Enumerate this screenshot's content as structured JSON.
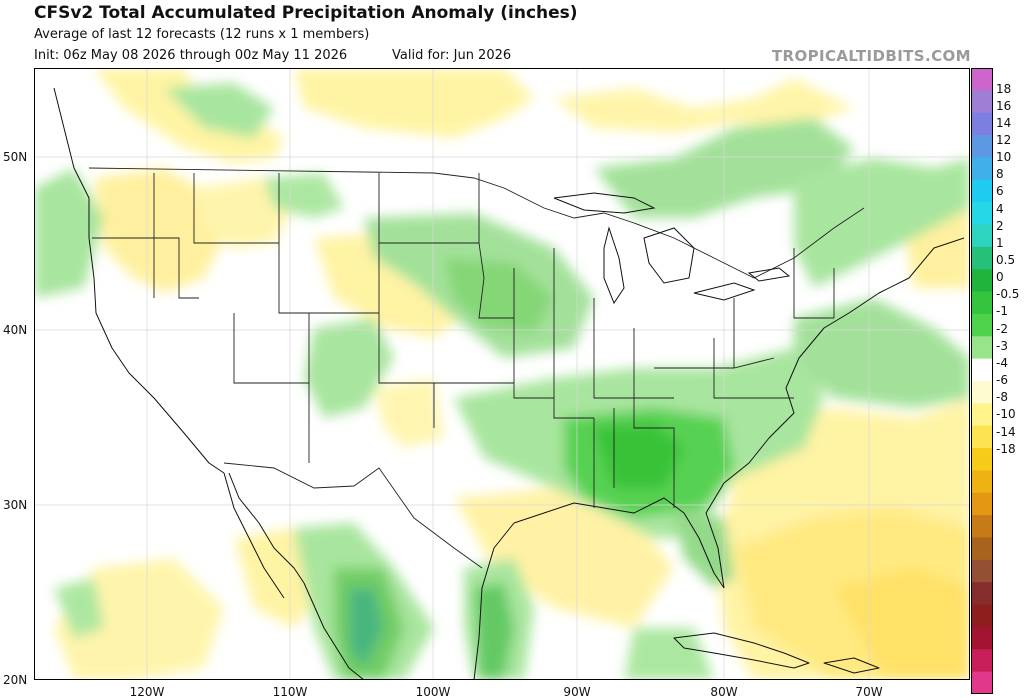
{
  "header": {
    "title": "CFSv2 Total Accumulated Precipitation Anomaly (inches)",
    "subtitle": "Average of last 12 forecasts (12 runs x 1 members)",
    "init": "Init: 06z May 08 2026 through 00z May 11 2026",
    "valid": "Valid for: Jun 2026",
    "credit": "TROPICALTIDBITS.COM"
  },
  "legend": {
    "labels": [
      "18",
      "16",
      "14",
      "12",
      "10",
      "8",
      "6",
      "4",
      "2",
      "1",
      "0.5",
      "0",
      "-0.5",
      "-1",
      "-2",
      "-3",
      "-4",
      "-6",
      "-8",
      "-10",
      "-14",
      "-18"
    ],
    "colors": [
      "#cc66cc",
      "#9f7fd6",
      "#7d7fe0",
      "#5d99e3",
      "#3fb0e8",
      "#20cbf0",
      "#26d7e6",
      "#2dd5c0",
      "#26c079",
      "#20b43d",
      "#35c43d",
      "#4fd24b",
      "#98e48b",
      "#ffffff",
      "#fffbd0",
      "#fff38a",
      "#fde34f",
      "#f7cb1a",
      "#efb214",
      "#e49712",
      "#c67a18",
      "#a8641c",
      "#935033",
      "#862e2e",
      "#8e1e1e",
      "#a31432",
      "#c81e5a",
      "#e2388c"
    ]
  },
  "axes": {
    "lat": [
      "50N",
      "40N",
      "30N",
      "20N"
    ],
    "lon": [
      "120W",
      "110W",
      "100W",
      "90W",
      "80W",
      "70W"
    ]
  }
}
